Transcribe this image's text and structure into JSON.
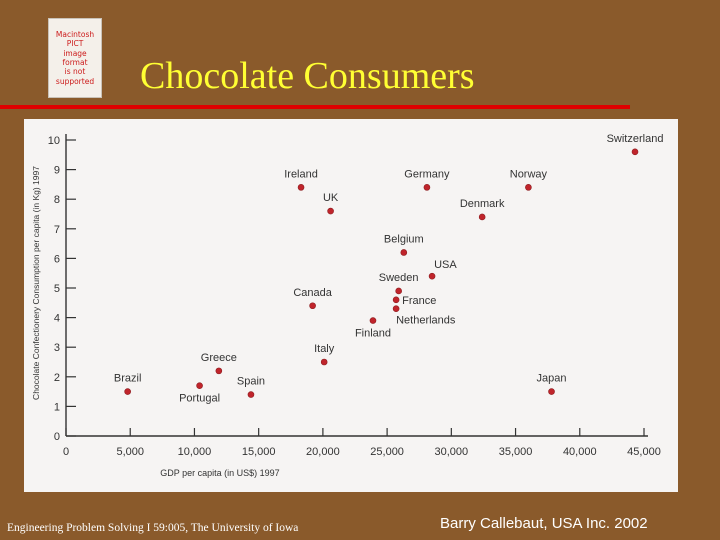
{
  "slide": {
    "title": "Chocolate Consumers",
    "placeholder_text": "Macintosh PICT\nimage format\nis not supported",
    "footer_left": "Engineering Problem Solving I 59:005, The University of Iowa",
    "footer_right": "Barry Callebaut, USA  Inc. 2002",
    "colors": {
      "background": "#8a5a2b",
      "title": "#ffff33",
      "rule": "#e00000",
      "point": "#c0242b",
      "chart_bg": "#f6f4f3"
    }
  },
  "chart_data": {
    "type": "scatter",
    "title": "",
    "xlabel": "GDP per capita (in US$) 1997",
    "ylabel": "Chocolate Confectionery Consumption per capita (in Kg) 1997",
    "xlim": [
      0,
      45000
    ],
    "ylim": [
      0,
      10
    ],
    "grid": false,
    "x_ticks": [
      0,
      5000,
      10000,
      15000,
      20000,
      25000,
      30000,
      35000,
      40000,
      45000
    ],
    "x_tick_labels": [
      "0",
      "5,000",
      "10,000",
      "15,000",
      "20,000",
      "25,000",
      "30,000",
      "35,000",
      "40,000",
      "45,000"
    ],
    "y_ticks": [
      0,
      1,
      2,
      3,
      4,
      5,
      6,
      7,
      8,
      9,
      10
    ],
    "y_tick_labels": [
      "0",
      "1",
      "2",
      "3",
      "4",
      "5",
      "6",
      "7",
      "8",
      "9",
      "10"
    ],
    "points": [
      {
        "label": "Switzerland",
        "x": 44300,
        "y": 9.6,
        "label_pos": "above"
      },
      {
        "label": "Ireland",
        "x": 18300,
        "y": 8.4,
        "label_pos": "above"
      },
      {
        "label": "Germany",
        "x": 28100,
        "y": 8.4,
        "label_pos": "above"
      },
      {
        "label": "Norway",
        "x": 36000,
        "y": 8.4,
        "label_pos": "above"
      },
      {
        "label": "UK",
        "x": 20600,
        "y": 7.6,
        "label_pos": "above"
      },
      {
        "label": "Denmark",
        "x": 32400,
        "y": 7.4,
        "label_pos": "above"
      },
      {
        "label": "Belgium",
        "x": 26300,
        "y": 6.2,
        "label_pos": "above"
      },
      {
        "label": "USA",
        "x": 28500,
        "y": 5.4,
        "label_pos": "above-right"
      },
      {
        "label": "Sweden",
        "x": 25900,
        "y": 4.9,
        "label_pos": "above"
      },
      {
        "label": "France",
        "x": 25700,
        "y": 4.6,
        "label_pos": "right"
      },
      {
        "label": "Netherlands",
        "x": 25700,
        "y": 4.3,
        "label_pos": "below-right"
      },
      {
        "label": "Canada",
        "x": 19200,
        "y": 4.4,
        "label_pos": "above"
      },
      {
        "label": "Finland",
        "x": 23900,
        "y": 3.9,
        "label_pos": "below"
      },
      {
        "label": "Italy",
        "x": 20100,
        "y": 2.5,
        "label_pos": "above"
      },
      {
        "label": "Greece",
        "x": 11900,
        "y": 2.2,
        "label_pos": "above"
      },
      {
        "label": "Spain",
        "x": 14400,
        "y": 1.4,
        "label_pos": "above"
      },
      {
        "label": "Portugal",
        "x": 10400,
        "y": 1.7,
        "label_pos": "below"
      },
      {
        "label": "Brazil",
        "x": 4800,
        "y": 1.5,
        "label_pos": "above"
      },
      {
        "label": "Japan",
        "x": 37800,
        "y": 1.5,
        "label_pos": "above"
      }
    ]
  }
}
